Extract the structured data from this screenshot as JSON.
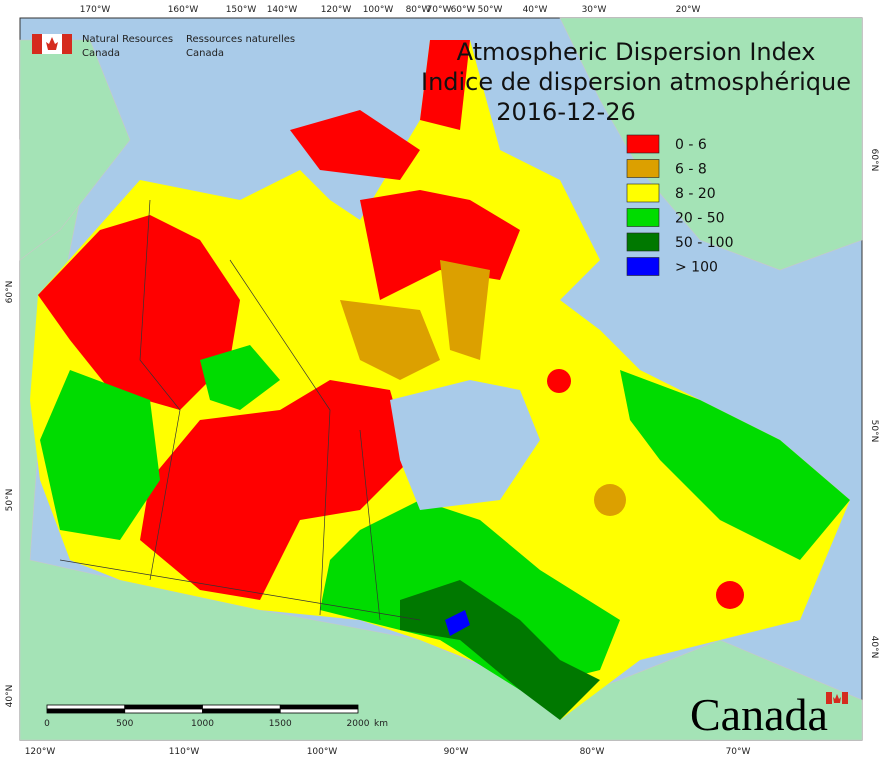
{
  "header": {
    "agency_en": [
      "Natural Resources",
      "Canada"
    ],
    "agency_fr": [
      "Ressources naturelles",
      "Canada"
    ]
  },
  "title": [
    "Atmospheric Dispersion Index",
    "Indice de dispersion atmosphérique"
  ],
  "date": "2016-12-26",
  "legend": [
    {
      "label": "0 - 6",
      "color": "#ff0000"
    },
    {
      "label": "6 - 8",
      "color": "#dca000"
    },
    {
      "label": "8 - 20",
      "color": "#ffff00"
    },
    {
      "label": "20 - 50",
      "color": "#00dc00"
    },
    {
      "label": "50 - 100",
      "color": "#007800"
    },
    {
      "label": "> 100",
      "color": "#0000ff"
    }
  ],
  "graticule": {
    "top": [
      "170°W",
      "160°W",
      "150°W",
      "140°W",
      "120°W",
      "100°W",
      "80°W",
      "70°W",
      "60°W",
      "50°W",
      "40°W",
      "30°W",
      "20°W"
    ],
    "bottom": [
      "120°W",
      "110°W",
      "100°W",
      "90°W",
      "80°W",
      "70°W"
    ],
    "left": [
      "60°N",
      "50°N",
      "40°N"
    ],
    "right": [
      "60°N",
      "50°N",
      "40°N"
    ]
  },
  "scale": {
    "labels": [
      "0",
      "500",
      "1000",
      "1500",
      "2000"
    ],
    "unit": "km"
  },
  "wordmark": "Canada"
}
